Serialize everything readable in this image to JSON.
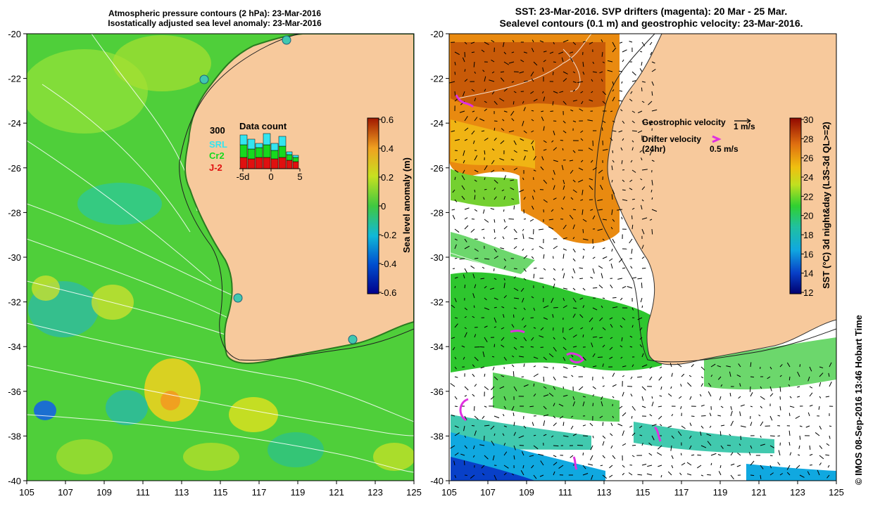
{
  "left_panel": {
    "title_line1": "Atmospheric pressure contours (2 hPa): 23-Mar-2016",
    "title_line2": "Isostatically adjusted sea level anomaly: 23-Mar-2016",
    "lat_labels": [
      "-20",
      "-22",
      "-24",
      "-26",
      "-28",
      "-30",
      "-32",
      "-34",
      "-36",
      "-38",
      "-40"
    ],
    "lon_labels": [
      "105",
      "107",
      "109",
      "111",
      "113",
      "115",
      "117",
      "119",
      "121",
      "123",
      "125"
    ],
    "colorbar": {
      "label": "Sea level anomaly (m)",
      "ticks": [
        "0.6",
        "0.4",
        "0.2",
        "0",
        "-0.2",
        "-0.4",
        "-0.6"
      ],
      "range": [
        -0.6,
        0.6
      ]
    },
    "data_count": {
      "title": "Data count",
      "max_label": "300",
      "legend": [
        {
          "name": "SRL",
          "color": "#33e5f0"
        },
        {
          "name": "Cr2",
          "color": "#16d91e"
        },
        {
          "name": "J-2",
          "color": "#e01010"
        }
      ],
      "x_labels": [
        "-5d",
        "0",
        "5"
      ]
    }
  },
  "right_panel": {
    "title_line1": "SST: 23-Mar-2016. SVP drifters (magenta): 20 Mar - 25 Mar.",
    "title_line2": "Sealevel contours (0.1 m) and geostrophic velocity: 23-Mar-2016.",
    "lat_labels": [
      "-20",
      "-22",
      "-24",
      "-26",
      "-28",
      "-30",
      "-32",
      "-34",
      "-36",
      "-38",
      "-40"
    ],
    "lon_labels": [
      "105",
      "107",
      "109",
      "111",
      "113",
      "115",
      "117",
      "119",
      "121",
      "123",
      "125"
    ],
    "legend": {
      "geostrophic_label": "Geostrophic velocity",
      "geostrophic_scale": "1 m/s",
      "drifter_label": "Drifter velocity",
      "drifter_sublabel": "(24hr)",
      "drifter_scale": "0.5 m/s"
    },
    "colorbar": {
      "label": "SST (°C) 3d night&day (L3S-3d QL>=2)",
      "ticks": [
        "30",
        "28",
        "26",
        "24",
        "22",
        "20",
        "18",
        "16",
        "14",
        "12"
      ],
      "range": [
        12,
        30
      ]
    }
  },
  "copyright": "© IMOS 08-Sep-2016 13:46 Hobart Time",
  "colors": {
    "land": "#f7c99c",
    "sla_green": "#5fd23a",
    "sst_orange": "#e98a10",
    "drifter": "#e030e0"
  }
}
